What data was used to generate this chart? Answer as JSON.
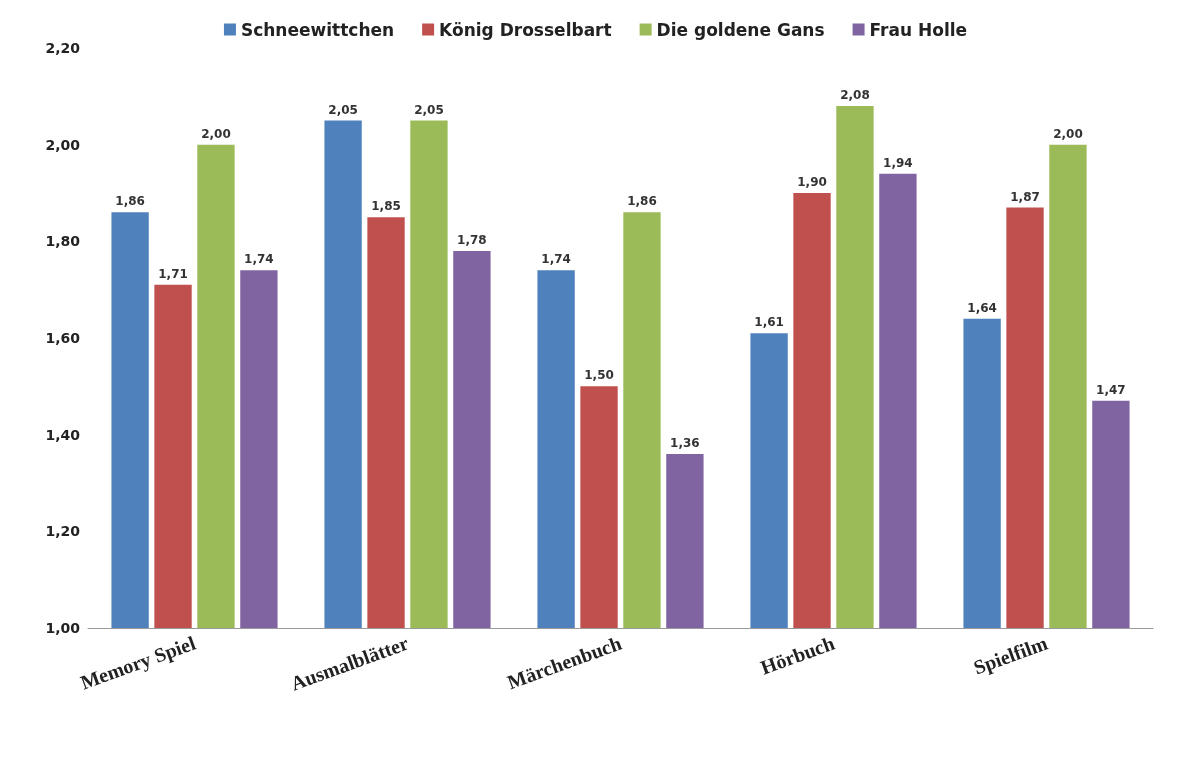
{
  "chart_data": {
    "type": "bar",
    "categories": [
      "Memory Spiel",
      "Ausmalblätter",
      "Märchenbuch",
      "Hörbuch",
      "Spielfilm"
    ],
    "series": [
      {
        "name": "Schneewittchen",
        "color": "#4f81bd",
        "values": [
          1.86,
          2.05,
          1.74,
          1.61,
          1.64
        ],
        "value_labels": [
          "1,86",
          "2,05",
          "1,74",
          "1,61",
          "1,64"
        ]
      },
      {
        "name": "König Drosselbart",
        "color": "#c0504d",
        "values": [
          1.71,
          1.85,
          1.5,
          1.9,
          1.87
        ],
        "value_labels": [
          "1,71",
          "1,85",
          "1,50",
          "1,90",
          "1,87"
        ]
      },
      {
        "name": "Die goldene Gans",
        "color": "#9bbb59",
        "values": [
          2.0,
          2.05,
          1.86,
          2.08,
          2.0
        ],
        "value_labels": [
          "2,00",
          "2,05",
          "1,86",
          "2,08",
          "2,00"
        ]
      },
      {
        "name": "Frau Holle",
        "color": "#8064a2",
        "values": [
          1.74,
          1.78,
          1.36,
          1.94,
          1.47
        ],
        "value_labels": [
          "1,74",
          "1,78",
          "1,36",
          "1,94",
          "1,47"
        ]
      }
    ],
    "ylim": [
      1,
      2.2
    ],
    "yticks": [
      {
        "value": 1,
        "label": "1,00"
      },
      {
        "value": 1.2,
        "label": "1,20"
      },
      {
        "value": 1.4,
        "label": "1,40"
      },
      {
        "value": 1.6,
        "label": "1,60"
      },
      {
        "value": 1.8,
        "label": "1,80"
      },
      {
        "value": 2,
        "label": "2,00"
      },
      {
        "value": 2.2,
        "label": "2,20"
      }
    ],
    "grid": false,
    "legend": "top"
  }
}
